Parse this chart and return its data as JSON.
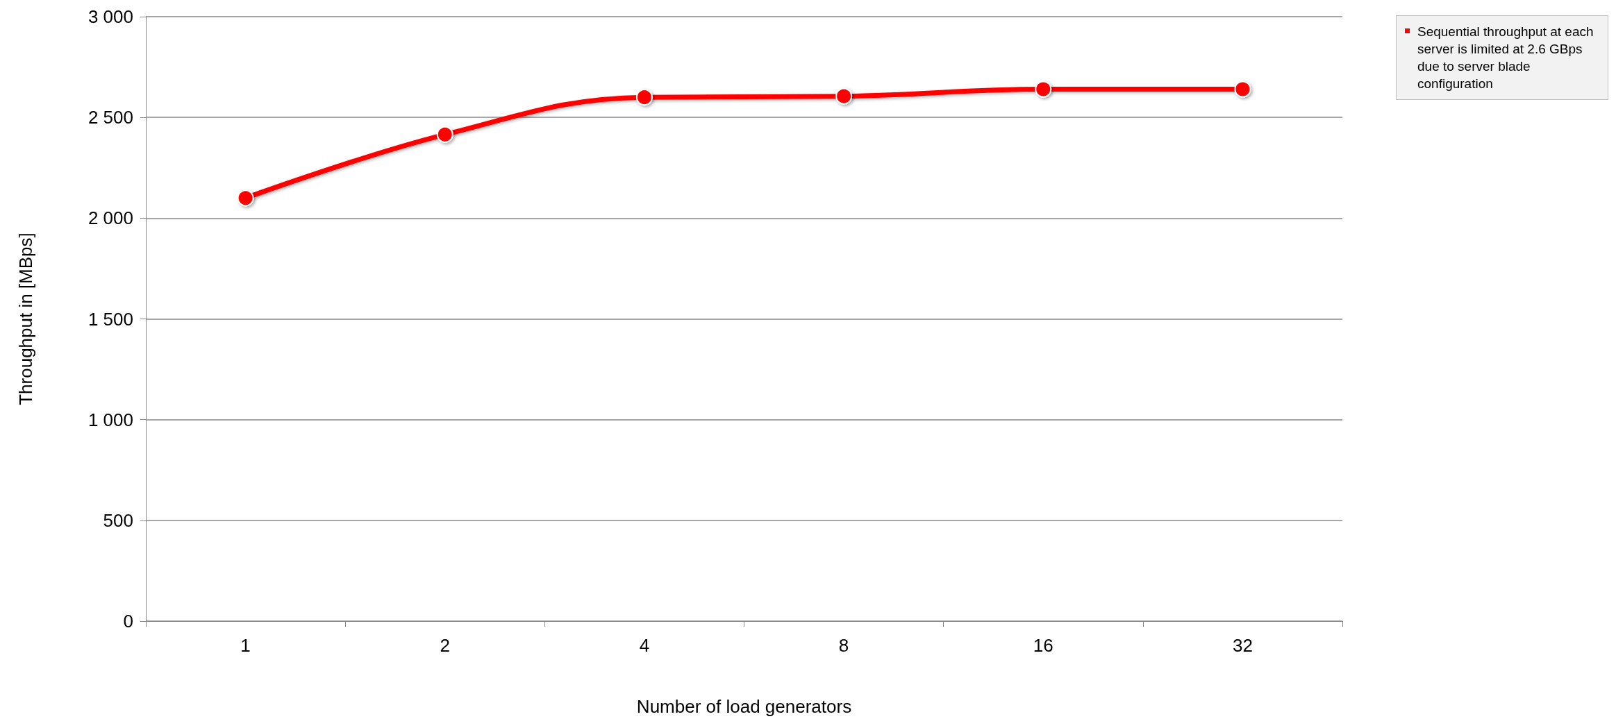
{
  "chart_data": {
    "type": "line",
    "xlabel": "Number of load generators",
    "ylabel": "Throughput in [MBps]",
    "categories": [
      "1",
      "2",
      "4",
      "8",
      "16",
      "32"
    ],
    "series": [
      {
        "color": "#ff0000",
        "values": [
          2100,
          2415,
          2600,
          2605,
          2640,
          2640
        ]
      }
    ],
    "ylim": [
      0,
      3000
    ],
    "yticks": [
      0,
      500,
      {
        "value": 1000,
        "label": "1 000"
      },
      {
        "value": 1500,
        "label": "1 500"
      },
      {
        "value": 2000,
        "label": "2 000"
      },
      {
        "value": 2500,
        "label": "2 500"
      },
      {
        "value": 3000,
        "label": "3 000"
      }
    ],
    "grid": "y",
    "marker": "circle",
    "line_style": "solid",
    "annotations": [
      "Sequential throughput at each server is limited at 2.6 GBps due to server blade configuration"
    ]
  }
}
